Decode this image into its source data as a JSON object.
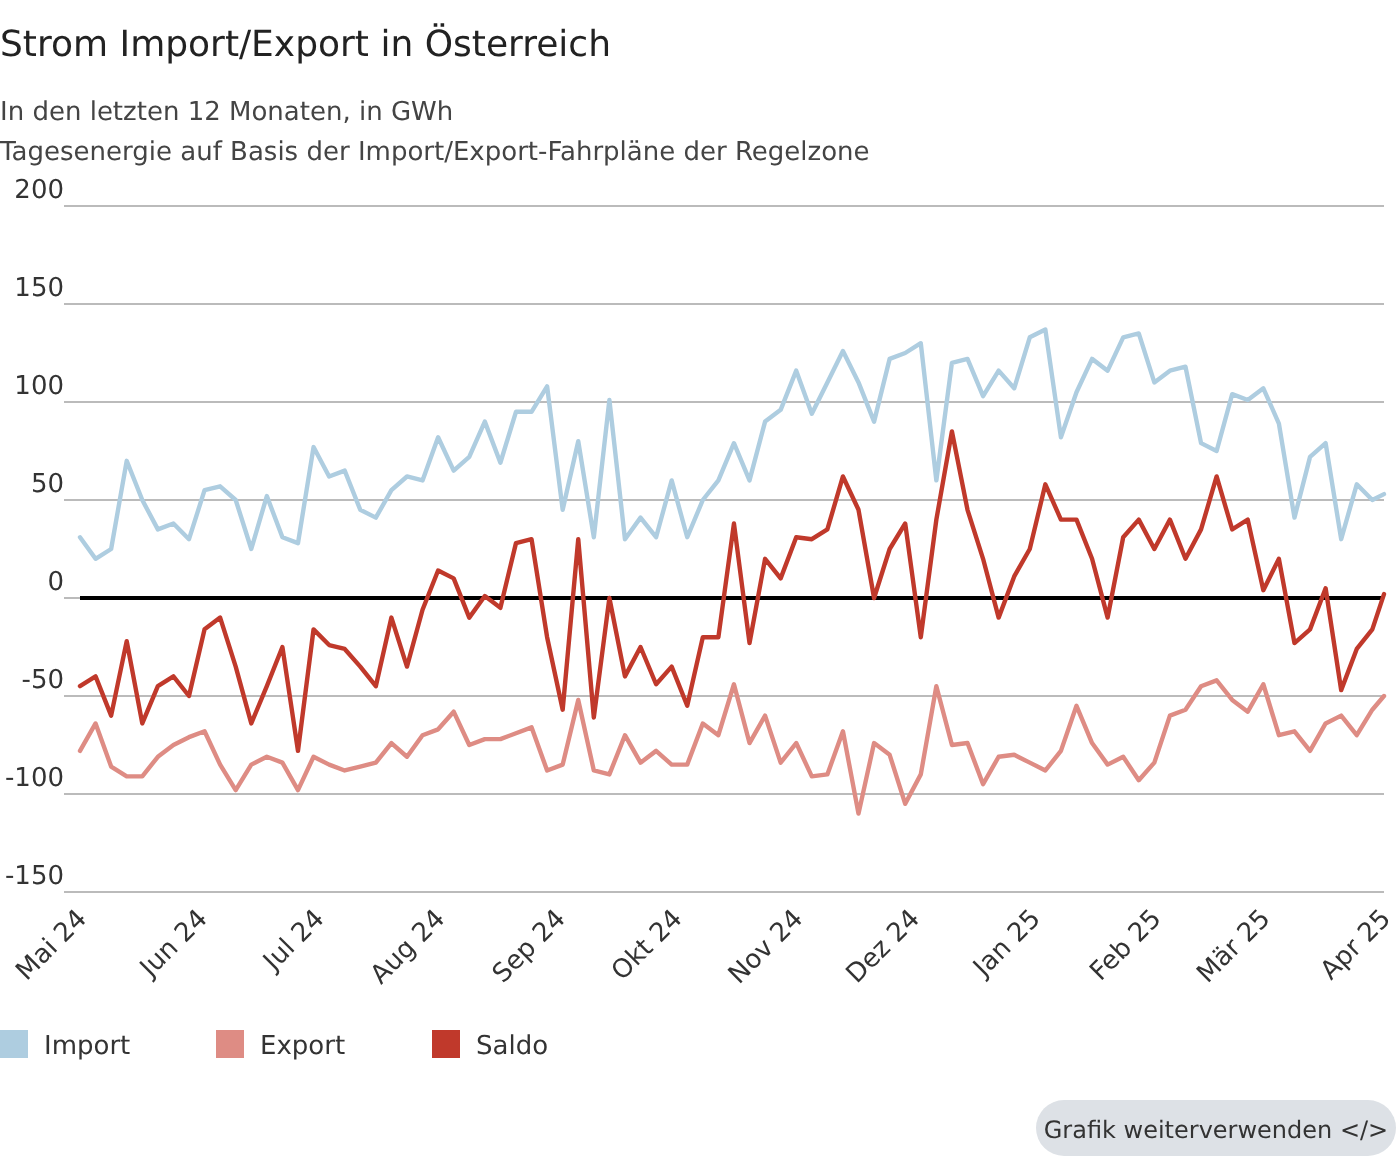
{
  "chart_data": {
    "type": "line",
    "title": "Strom Import/Export in Österreich",
    "subtitle": "In den letzten 12 Monaten, in GWh\nTagesenergie auf Basis der Import/Export-Fahrpläne der Regelzone",
    "x": [
      "2024-05-01",
      "2024-05-05",
      "2024-05-09",
      "2024-05-13",
      "2024-05-17",
      "2024-05-21",
      "2024-05-25",
      "2024-05-29",
      "2024-06-02",
      "2024-06-06",
      "2024-06-10",
      "2024-06-14",
      "2024-06-18",
      "2024-06-22",
      "2024-06-26",
      "2024-06-30",
      "2024-07-04",
      "2024-07-08",
      "2024-07-12",
      "2024-07-16",
      "2024-07-20",
      "2024-07-24",
      "2024-07-28",
      "2024-08-01",
      "2024-08-05",
      "2024-08-09",
      "2024-08-13",
      "2024-08-17",
      "2024-08-21",
      "2024-08-25",
      "2024-08-29",
      "2024-09-02",
      "2024-09-06",
      "2024-09-10",
      "2024-09-14",
      "2024-09-18",
      "2024-09-22",
      "2024-09-26",
      "2024-09-30",
      "2024-10-04",
      "2024-10-08",
      "2024-10-12",
      "2024-10-16",
      "2024-10-20",
      "2024-10-24",
      "2024-10-28",
      "2024-11-01",
      "2024-11-05",
      "2024-11-09",
      "2024-11-13",
      "2024-11-17",
      "2024-11-21",
      "2024-11-25",
      "2024-11-29",
      "2024-12-03",
      "2024-12-07",
      "2024-12-11",
      "2024-12-15",
      "2024-12-19",
      "2024-12-23",
      "2024-12-27",
      "2024-12-31",
      "2025-01-04",
      "2025-01-08",
      "2025-01-12",
      "2025-01-16",
      "2025-01-20",
      "2025-01-24",
      "2025-01-28",
      "2025-02-01",
      "2025-02-05",
      "2025-02-09",
      "2025-02-13",
      "2025-02-17",
      "2025-02-21",
      "2025-02-25",
      "2025-03-01",
      "2025-03-05",
      "2025-03-09",
      "2025-03-13",
      "2025-03-17",
      "2025-03-21",
      "2025-03-25",
      "2025-03-29",
      "2025-04-01"
    ],
    "series": [
      {
        "name": "Import",
        "color": "#aecde0",
        "values": [
          31,
          20,
          25,
          70,
          50,
          35,
          38,
          30,
          55,
          57,
          50,
          25,
          52,
          31,
          28,
          77,
          62,
          65,
          45,
          41,
          55,
          62,
          60,
          82,
          65,
          72,
          90,
          69,
          95,
          95,
          108,
          45,
          80,
          31,
          101,
          30,
          41,
          31,
          60,
          31,
          50,
          60,
          79,
          60,
          90,
          96,
          116,
          94,
          110,
          126,
          110,
          90,
          122,
          125,
          130,
          60,
          120,
          122,
          103,
          116,
          107,
          133,
          137,
          82,
          105,
          122,
          116,
          133,
          135,
          110,
          116,
          118,
          79,
          75,
          104,
          101,
          107,
          89,
          41,
          72,
          79,
          30,
          58,
          50,
          53
        ]
      },
      {
        "name": "Export",
        "color": "#de8c84",
        "values": [
          -78,
          -64,
          -86,
          -91,
          -91,
          -81,
          -75,
          -71,
          -68,
          -85,
          -98,
          -85,
          -81,
          -84,
          -98,
          -81,
          -85,
          -88,
          -86,
          -84,
          -74,
          -81,
          -70,
          -67,
          -58,
          -75,
          -72,
          -72,
          -69,
          -66,
          -88,
          -85,
          -52,
          -88,
          -90,
          -70,
          -84,
          -78,
          -85,
          -85,
          -64,
          -70,
          -44,
          -74,
          -60,
          -84,
          -74,
          -91,
          -90,
          -68,
          -110,
          -74,
          -80,
          -105,
          -90,
          -45,
          -75,
          -74,
          -95,
          -81,
          -80,
          -84,
          -88,
          -78,
          -55,
          -74,
          -85,
          -81,
          -93,
          -84,
          -60,
          -57,
          -45,
          -42,
          -52,
          -58,
          -44,
          -70,
          -68,
          -78,
          -64,
          -60,
          -70,
          -57,
          -50
        ]
      },
      {
        "name": "Saldo",
        "color": "#c0392b",
        "values": [
          -45,
          -40,
          -60,
          -22,
          -64,
          -45,
          -40,
          -50,
          -16,
          -10,
          -35,
          -64,
          -45,
          -25,
          -78,
          -16,
          -24,
          -26,
          -35,
          -45,
          -10,
          -35,
          -6,
          14,
          10,
          -10,
          1,
          -5,
          28,
          30,
          -20,
          -57,
          30,
          -61,
          0,
          -40,
          -25,
          -44,
          -35,
          -55,
          -20,
          -20,
          38,
          -23,
          20,
          10,
          31,
          30,
          35,
          62,
          45,
          0,
          25,
          38,
          -20,
          40,
          85,
          45,
          20,
          -10,
          11,
          25,
          58,
          40,
          40,
          20,
          -10,
          31,
          40,
          25,
          40,
          20,
          35,
          62,
          35,
          40,
          4,
          20,
          -23,
          -16,
          5,
          -47,
          -26,
          -16,
          2
        ]
      }
    ],
    "xlim": [
      "2024-05-01",
      "2025-04-01"
    ],
    "xticks": [
      {
        "value": "2024-05-01",
        "label": "Mai 24"
      },
      {
        "value": "2024-06-01",
        "label": "Jun 24"
      },
      {
        "value": "2024-07-01",
        "label": "Jul 24"
      },
      {
        "value": "2024-08-01",
        "label": "Aug 24"
      },
      {
        "value": "2024-09-01",
        "label": "Sep 24"
      },
      {
        "value": "2024-10-01",
        "label": "Okt 24"
      },
      {
        "value": "2024-11-01",
        "label": "Nov 24"
      },
      {
        "value": "2024-12-01",
        "label": "Dez 24"
      },
      {
        "value": "2025-01-01",
        "label": "Jan 25"
      },
      {
        "value": "2025-02-01",
        "label": "Feb 25"
      },
      {
        "value": "2025-03-01",
        "label": "Mär 25"
      },
      {
        "value": "2025-04-01",
        "label": "Apr 25"
      }
    ],
    "ylim": [
      -150,
      200
    ],
    "yticks": [
      -150,
      -100,
      -50,
      0,
      50,
      100,
      150,
      200
    ],
    "grid": "y",
    "legend": "bottom left",
    "ref_lines": [
      {
        "axis": "y",
        "value": 0,
        "color": "#000000"
      }
    ],
    "annotations": [
      "Grafik weiterverwenden </>"
    ]
  }
}
